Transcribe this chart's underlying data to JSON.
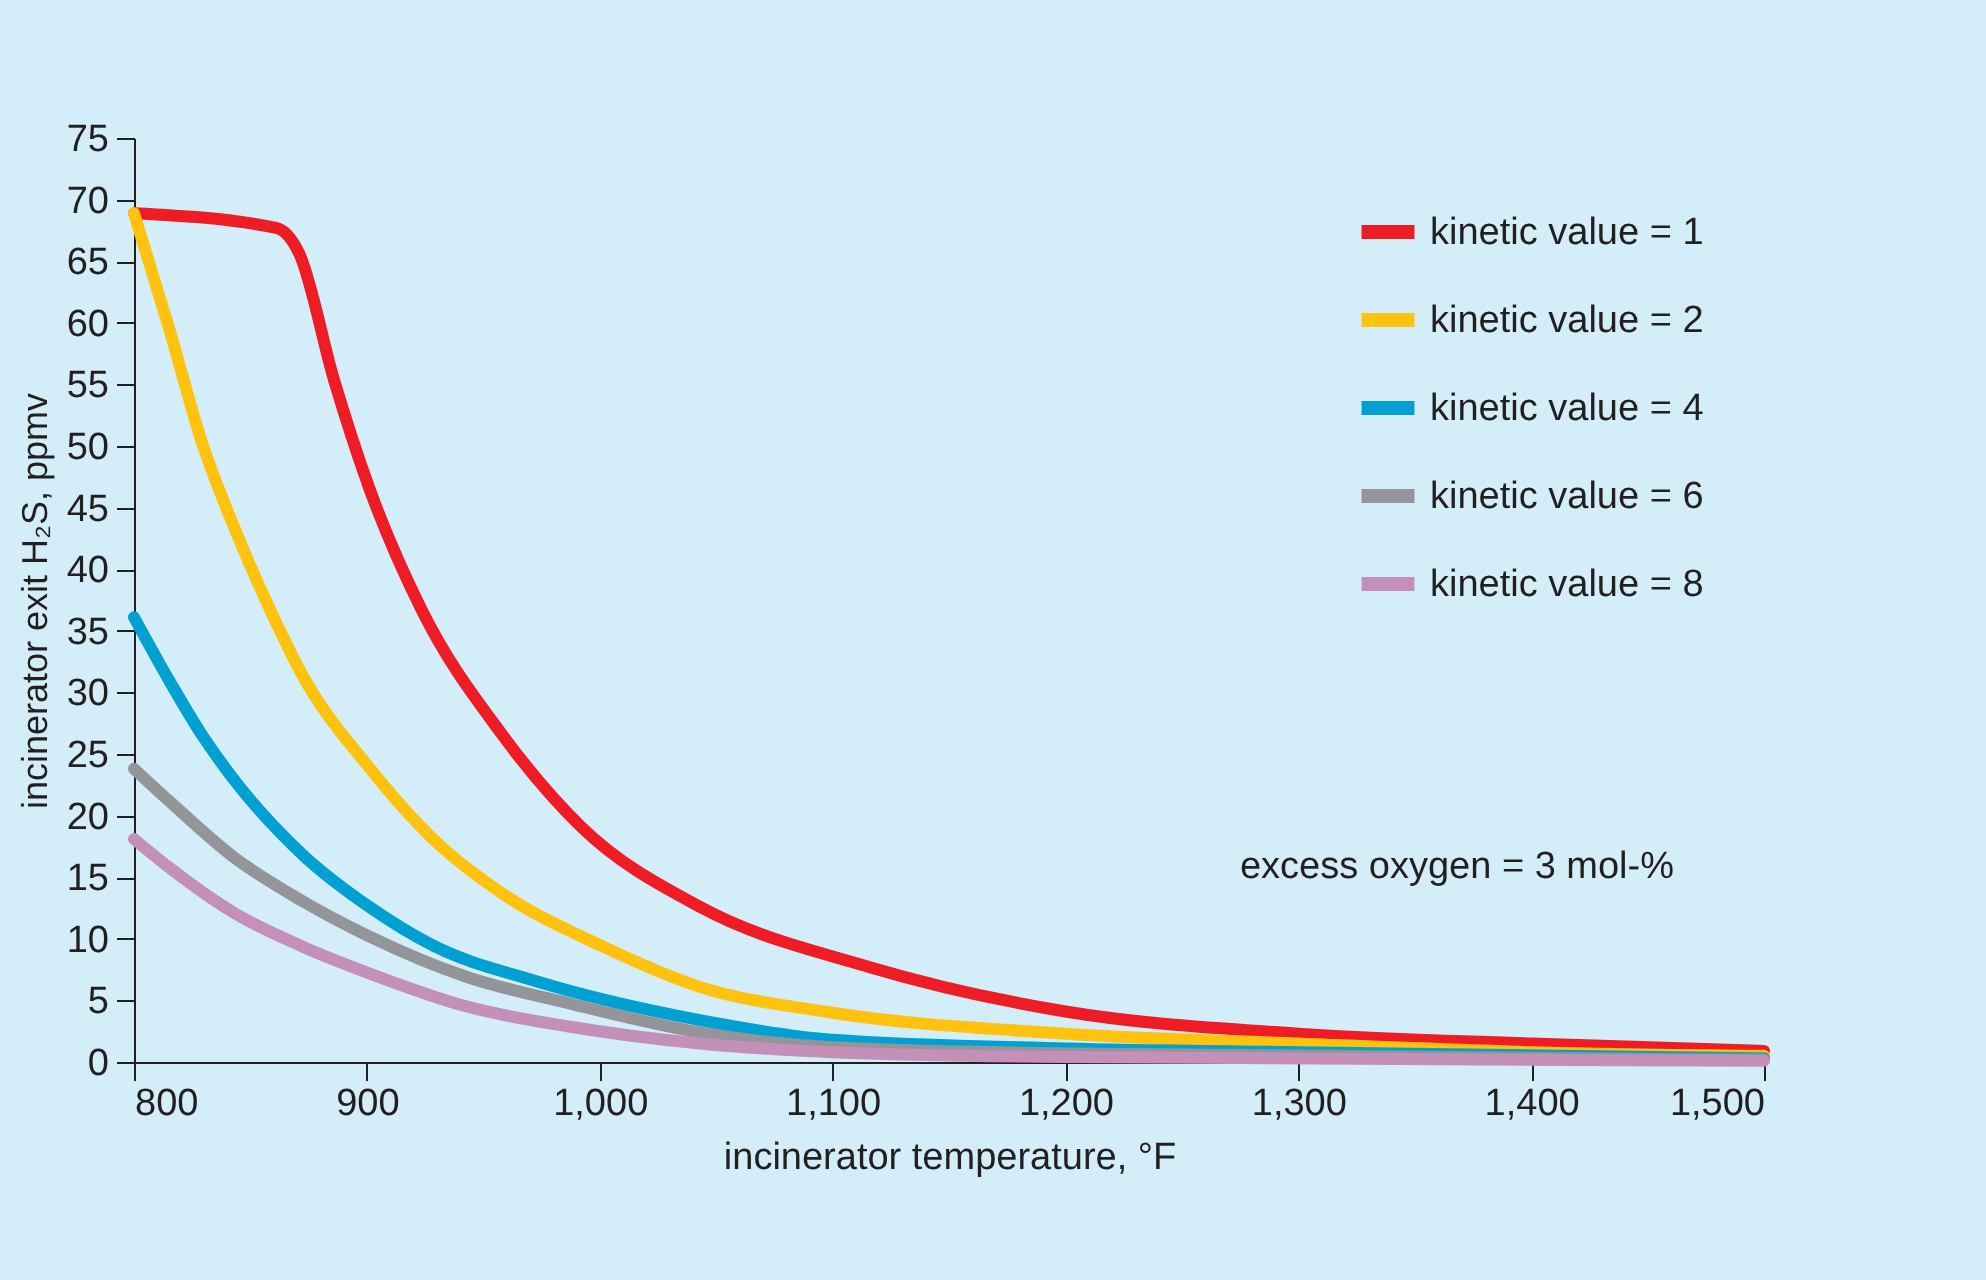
{
  "chart_data": {
    "type": "line",
    "xlabel": "incinerator temperature, °F",
    "ylabel": "incinerator exit H₂S, ppmv",
    "xlim": [
      800,
      1500
    ],
    "ylim": [
      0,
      75
    ],
    "xticks": [
      800,
      900,
      {
        "value": 1000,
        "label": "1,000"
      },
      {
        "value": 1100,
        "label": "1,100"
      },
      {
        "value": 1200,
        "label": "1,200"
      },
      {
        "value": 1300,
        "label": "1,300"
      },
      {
        "value": 1400,
        "label": "1,400"
      },
      {
        "value": 1500,
        "label": "1,500"
      }
    ],
    "yticks": [
      0,
      5,
      10,
      15,
      20,
      25,
      30,
      35,
      40,
      45,
      50,
      55,
      60,
      65,
      70,
      75
    ],
    "grid": false,
    "legend": "top right",
    "marker": "none",
    "line_style": "solid",
    "annotations": [
      "excess oxygen = 3 mol-%"
    ],
    "series": [
      {
        "name": "kinetic value = 1",
        "color": "#ee1c25",
        "x": [
          800,
          861,
          871,
          886,
          901,
          923,
          958,
          992,
          1043,
          1116,
          1200,
          1300,
          1400,
          1500
        ],
        "values": [
          68.9,
          67.7,
          65.6,
          55.3,
          46.6,
          36.9,
          26.6,
          19.1,
          12.6,
          7.7,
          4.1,
          2.3,
          1.5,
          0.9
        ]
      },
      {
        "name": "kinetic value = 2",
        "color": "#ffc20e",
        "x": [
          800,
          815,
          829,
          843,
          858,
          872,
          901,
          929,
          958,
          1001,
          1043,
          1100,
          1200,
          1300,
          1400,
          1500
        ],
        "values": [
          68.9,
          59.6,
          50.4,
          43.4,
          36.9,
          31.5,
          23.9,
          18,
          13.7,
          9.4,
          6.1,
          4,
          2.3,
          1.5,
          0.8,
          0.5
        ]
      },
      {
        "name": "kinetic value = 4",
        "color": "#00a0d2",
        "x": [
          800,
          815,
          829,
          843,
          872,
          901,
          929,
          972,
          1043,
          1100,
          1200,
          1300,
          1500
        ],
        "values": [
          36.1,
          31,
          26.6,
          22.9,
          16.9,
          12.6,
          9.4,
          6.6,
          3.4,
          1.8,
          1.1,
          0.8,
          0.3
        ]
      },
      {
        "name": "kinetic value = 6",
        "color": "#939598",
        "x": [
          800,
          815,
          843,
          872,
          901,
          943,
          986,
          1043,
          1100,
          1200,
          1500
        ],
        "values": [
          23.8,
          21.2,
          16.6,
          13.1,
          10.2,
          6.9,
          4.8,
          2.4,
          1.2,
          0.7,
          0.2
        ]
      },
      {
        "name": "kinetic value = 8",
        "color": "#c48fb8",
        "x": [
          800,
          815,
          843,
          872,
          901,
          943,
          986,
          1043,
          1100,
          1200,
          1500
        ],
        "values": [
          18.1,
          15.8,
          12.1,
          9.4,
          7.2,
          4.5,
          2.9,
          1.5,
          0.8,
          0.4,
          0.1
        ]
      }
    ]
  }
}
